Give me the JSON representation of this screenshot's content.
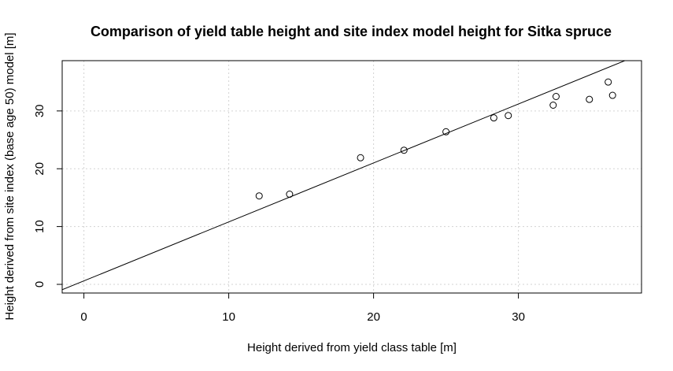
{
  "chart_data": {
    "type": "scatter",
    "title": "Comparison of yield table height and site index model height for Sitka spruce",
    "xlabel": "Height derived from yield class table [m]",
    "ylabel": "Height derived from site index (base age 50) model [m]",
    "xlim": [
      -1.5,
      38.5
    ],
    "ylim": [
      -1.5,
      38.7
    ],
    "xticks": [
      0,
      10,
      20,
      30
    ],
    "yticks": [
      0,
      10,
      20,
      30
    ],
    "grid": true,
    "series": [
      {
        "marker": "open-circle",
        "points": [
          {
            "x": 12.1,
            "y": 15.3
          },
          {
            "x": 14.2,
            "y": 15.6
          },
          {
            "x": 19.1,
            "y": 21.9
          },
          {
            "x": 22.1,
            "y": 23.2
          },
          {
            "x": 25.0,
            "y": 26.4
          },
          {
            "x": 28.3,
            "y": 28.8
          },
          {
            "x": 29.3,
            "y": 29.2
          },
          {
            "x": 32.4,
            "y": 31.0
          },
          {
            "x": 32.6,
            "y": 32.5
          },
          {
            "x": 34.9,
            "y": 32.0
          },
          {
            "x": 36.2,
            "y": 35.0
          },
          {
            "x": 36.5,
            "y": 32.7
          }
        ]
      }
    ],
    "reference_line": {
      "intercept": 0.6,
      "slope": 1.02
    }
  }
}
